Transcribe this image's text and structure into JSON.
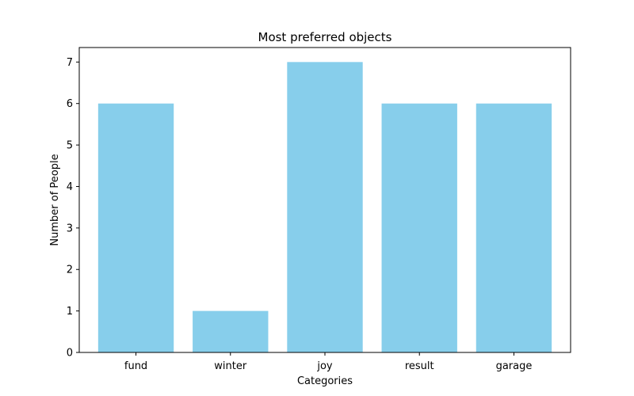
{
  "chart_data": {
    "type": "bar",
    "title": "Most preferred objects",
    "xlabel": "Categories",
    "ylabel": "Number of People",
    "categories": [
      "fund",
      "winter",
      "joy",
      "result",
      "garage"
    ],
    "values": [
      6,
      1,
      7,
      6,
      6
    ],
    "ylim": [
      0,
      7.35
    ],
    "yticks": [
      0,
      1,
      2,
      3,
      4,
      5,
      6,
      7
    ],
    "grid": false,
    "bar_color": "#87ceeb"
  }
}
